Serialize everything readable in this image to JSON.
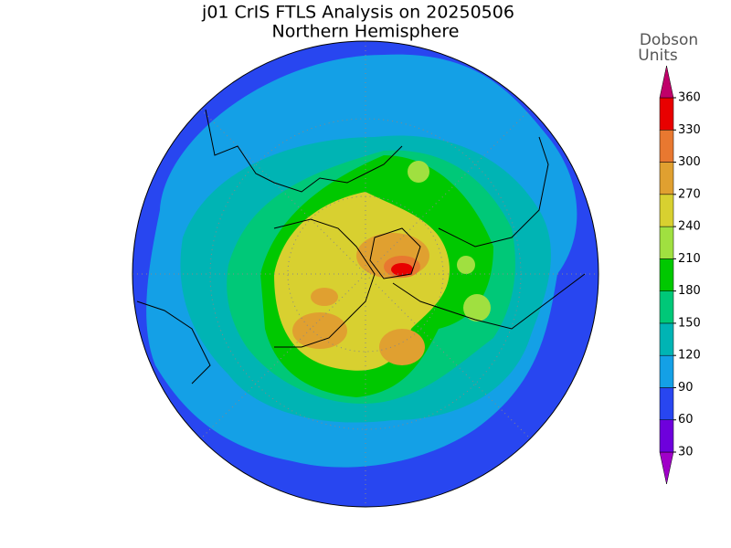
{
  "header": {
    "title": "j01 CrIS FTLS Analysis on 20250506",
    "subtitle": "Northern Hemisphere"
  },
  "colorbar": {
    "label": [
      "Dobson",
      "Units"
    ],
    "lim": [
      30,
      360
    ],
    "ticks": [
      30,
      60,
      90,
      120,
      150,
      180,
      210,
      240,
      270,
      300,
      330,
      360
    ],
    "colors": [
      "#a000c8",
      "#6e00dc",
      "#2846f0",
      "#14a0e6",
      "#00b4b4",
      "#00c878",
      "#00c800",
      "#a0e040",
      "#d8d030",
      "#e0a030",
      "#e87830",
      "#e80000",
      "#c0006a"
    ]
  }
}
